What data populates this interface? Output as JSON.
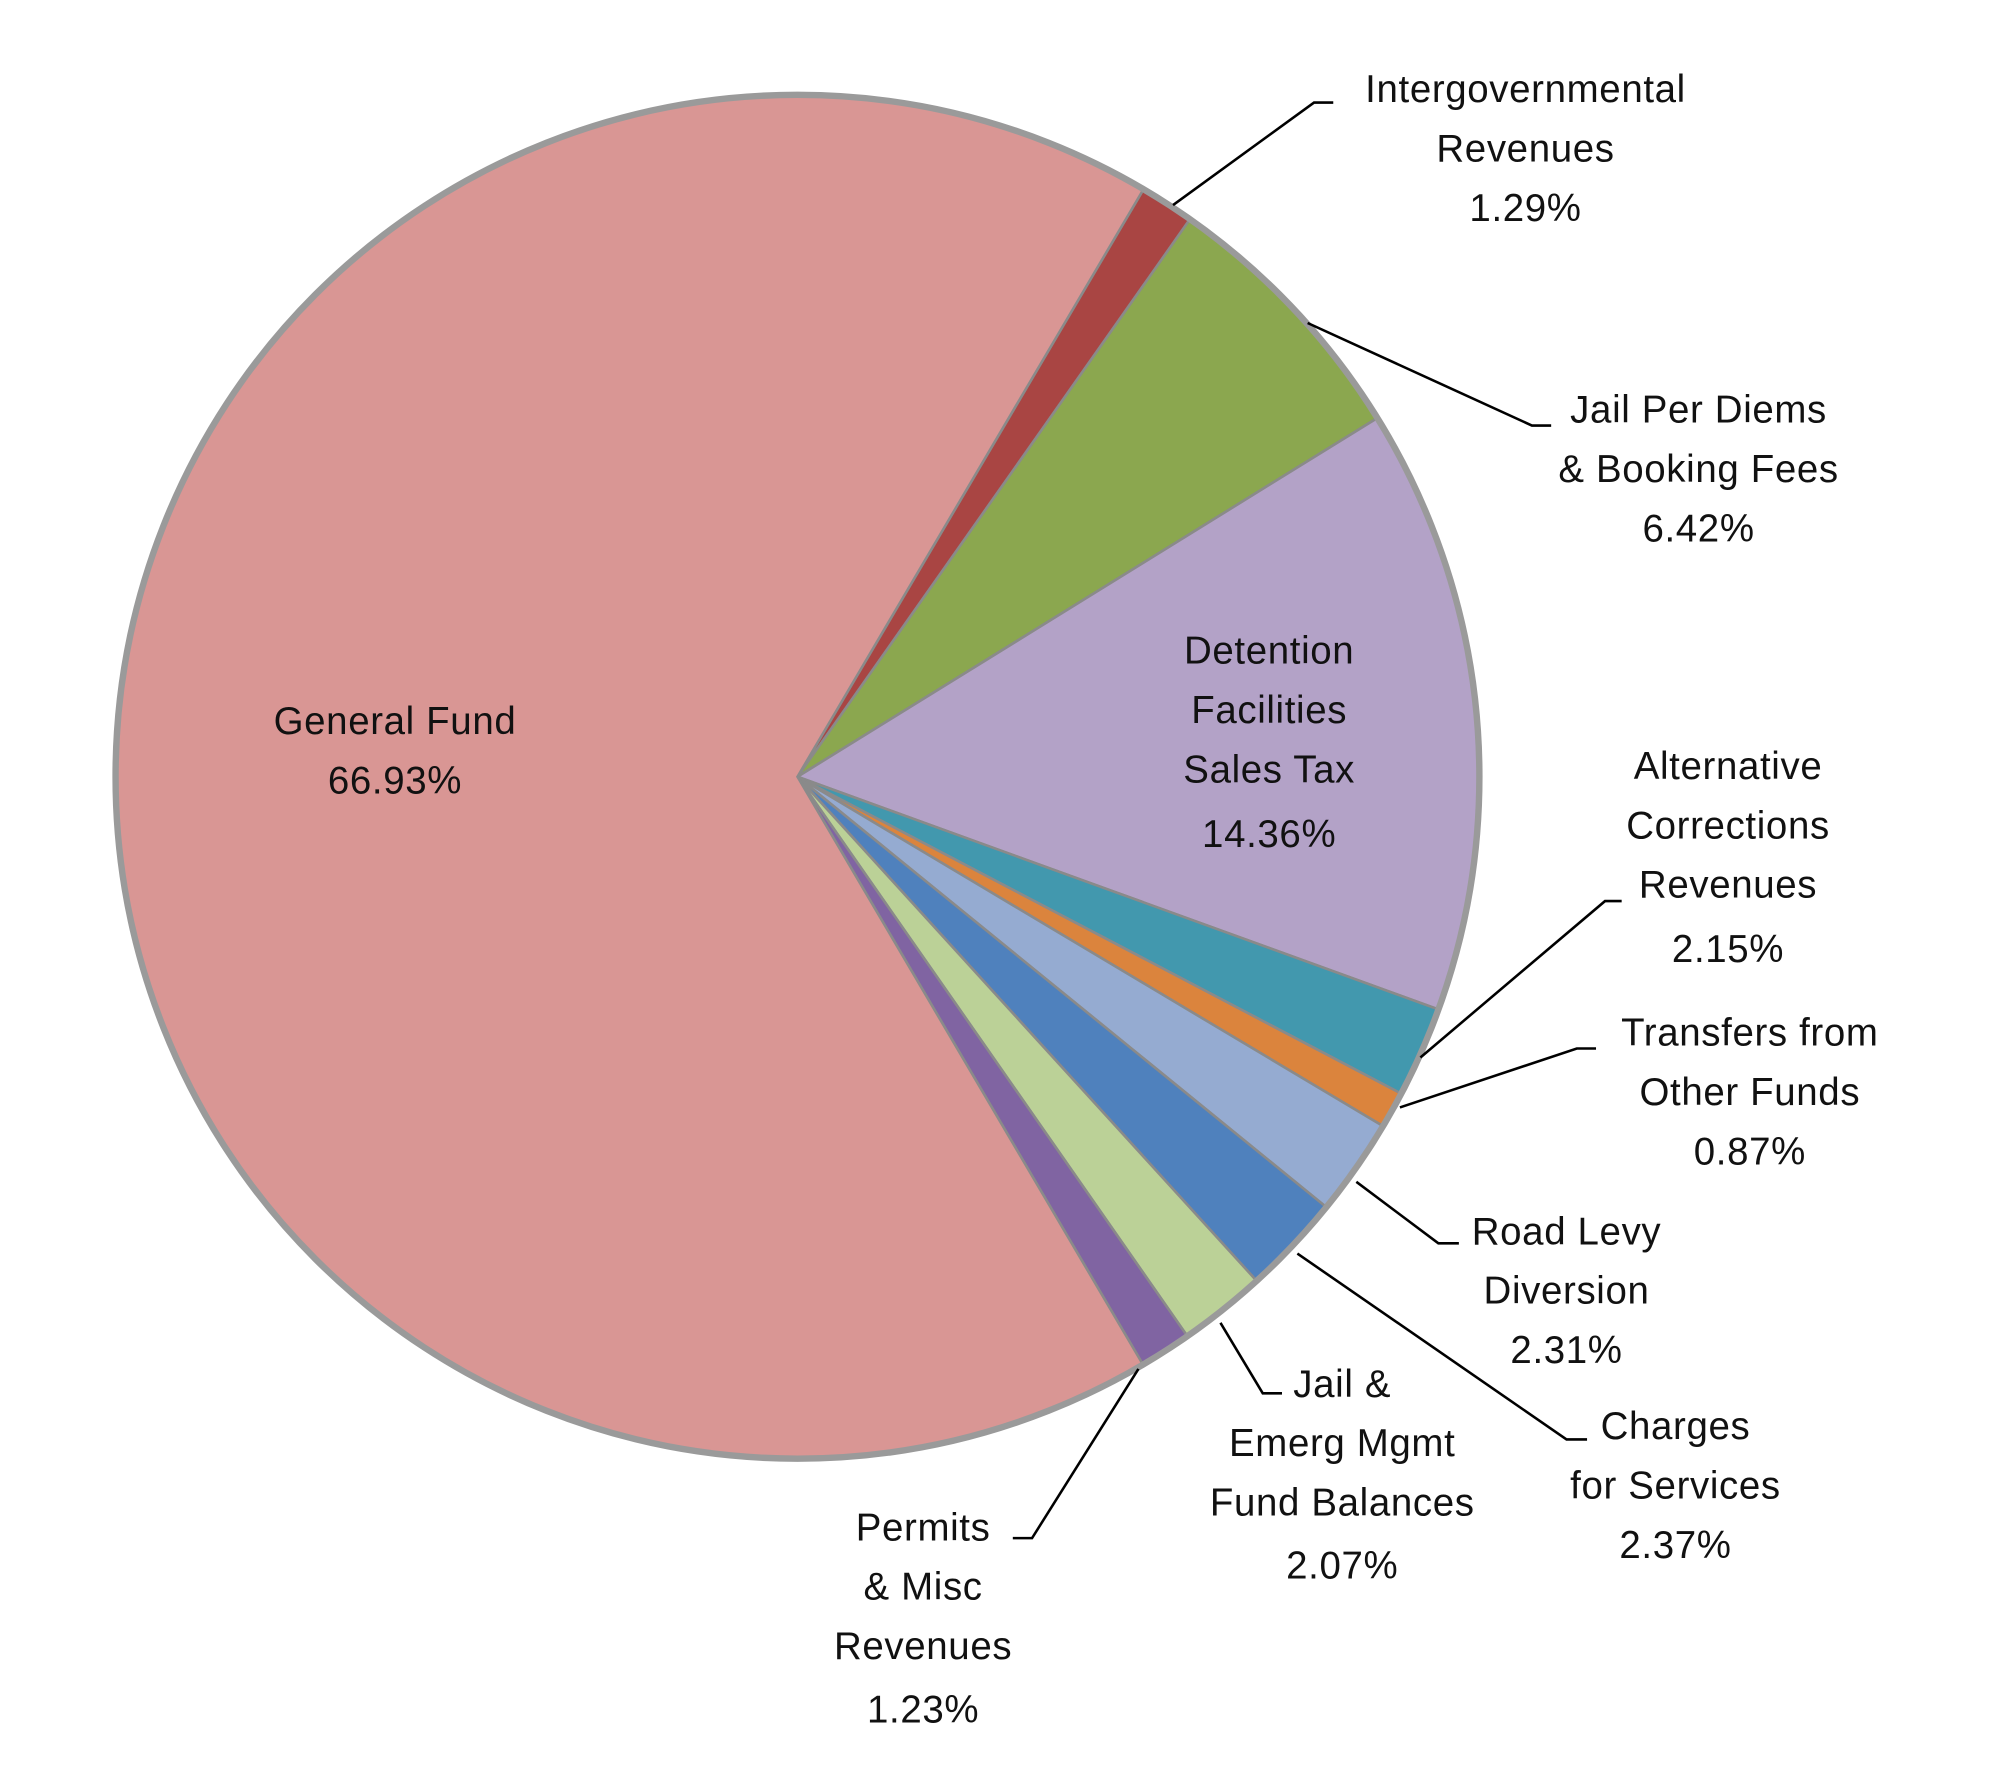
{
  "chart_data": {
    "type": "pie",
    "title": "",
    "unit": "%",
    "slices": [
      {
        "label": "Intergovernmental Revenues",
        "lines": [
          "Intergovernmental",
          "Revenues"
        ],
        "value": 1.29,
        "value_label": "1.29%",
        "color": "#A94543"
      },
      {
        "label": "Jail Per Diems & Booking Fees",
        "lines": [
          "Jail Per Diems",
          "& Booking Fees"
        ],
        "value": 6.42,
        "value_label": "6.42%",
        "color": "#8BA74F"
      },
      {
        "label": "Detention Facilities Sales Tax",
        "lines": [
          "Detention",
          "Facilities",
          "Sales Tax"
        ],
        "value": 14.36,
        "value_label": "14.36%",
        "color": "#B3A2C7"
      },
      {
        "label": "Alternative Corrections Revenues",
        "lines": [
          "Alternative",
          "Corrections",
          "Revenues"
        ],
        "value": 2.15,
        "value_label": "2.15%",
        "color": "#4298AE"
      },
      {
        "label": "Transfers from Other Funds",
        "lines": [
          "Transfers from",
          "Other Funds"
        ],
        "value": 0.87,
        "value_label": "0.87%",
        "color": "#DB843D"
      },
      {
        "label": "Road Levy Diversion",
        "lines": [
          "Road Levy",
          "Diversion"
        ],
        "value": 2.31,
        "value_label": "2.31%",
        "color": "#95ABD1"
      },
      {
        "label": "Charges for Services",
        "lines": [
          "Charges",
          "for Services"
        ],
        "value": 2.37,
        "value_label": "2.37%",
        "color": "#4F81BD"
      },
      {
        "label": "Jail & Emerg Mgmt Fund Balances",
        "lines": [
          "Jail &",
          "Emerg  Mgmt",
          "Fund Balances"
        ],
        "value": 2.07,
        "value_label": "2.07%",
        "color": "#BBD197"
      },
      {
        "label": "Permits & Misc Revenues",
        "lines": [
          "Permits",
          "& Misc",
          "Revenues"
        ],
        "value": 1.23,
        "value_label": "1.23%",
        "color": "#8064A2"
      },
      {
        "label": "General Fund",
        "lines": [
          "General Fund"
        ],
        "value": 66.93,
        "value_label": "66.93%",
        "color": "#D99694"
      }
    ],
    "legend": "none",
    "border_color": "#9A9A9A"
  }
}
